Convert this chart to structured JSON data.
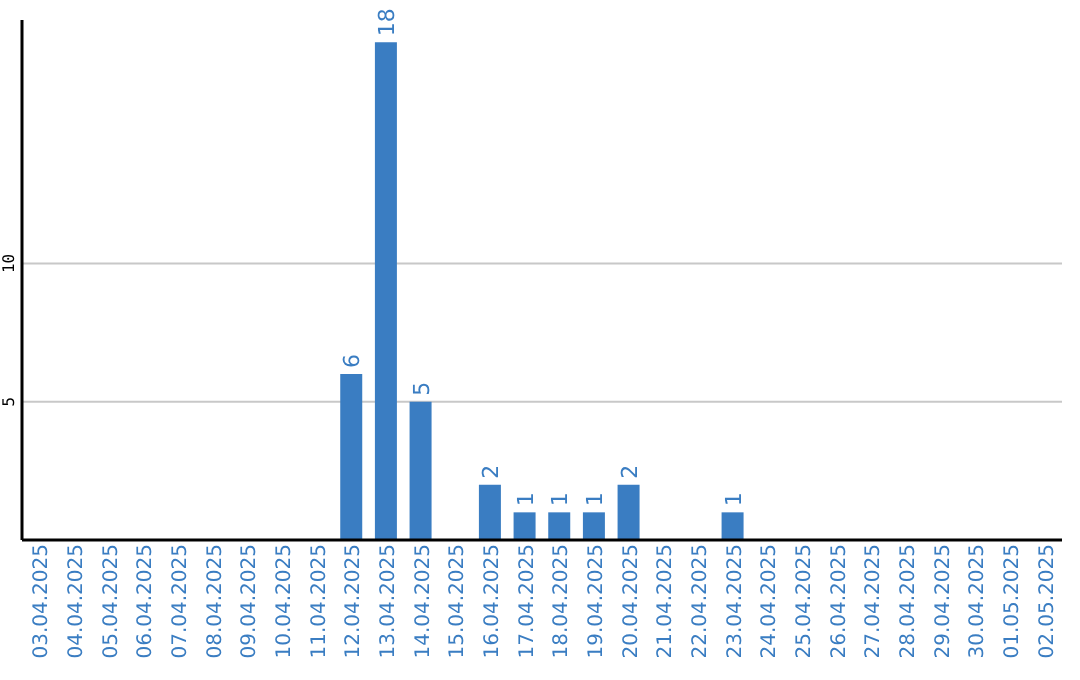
{
  "chart_data": {
    "type": "bar",
    "categories": [
      "03.04.2025",
      "04.04.2025",
      "05.04.2025",
      "06.04.2025",
      "07.04.2025",
      "08.04.2025",
      "09.04.2025",
      "10.04.2025",
      "11.04.2025",
      "12.04.2025",
      "13.04.2025",
      "14.04.2025",
      "15.04.2025",
      "16.04.2025",
      "17.04.2025",
      "18.04.2025",
      "19.04.2025",
      "20.04.2025",
      "21.04.2025",
      "22.04.2025",
      "23.04.2025",
      "24.04.2025",
      "25.04.2025",
      "26.04.2025",
      "27.04.2025",
      "28.04.2025",
      "29.04.2025",
      "30.04.2025",
      "01.05.2025",
      "02.05.2025"
    ],
    "values": [
      0,
      0,
      0,
      0,
      0,
      0,
      0,
      0,
      0,
      6,
      18,
      5,
      0,
      2,
      1,
      1,
      1,
      2,
      0,
      0,
      1,
      0,
      0,
      0,
      0,
      0,
      0,
      0,
      0,
      0
    ],
    "value_labels": [
      null,
      null,
      null,
      null,
      null,
      null,
      null,
      null,
      null,
      "6",
      "18",
      "5",
      null,
      "2",
      "1",
      "1",
      "1",
      "2",
      null,
      null,
      "1",
      null,
      null,
      null,
      null,
      null,
      null,
      null,
      null,
      null
    ],
    "color": "#3a7dc2",
    "ylim": [
      0,
      18.8
    ],
    "yticks": [
      5,
      10
    ],
    "grid": "y"
  }
}
